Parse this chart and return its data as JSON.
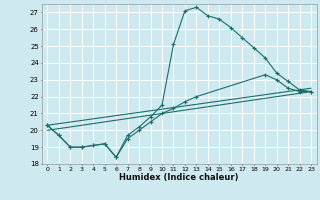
{
  "title": "",
  "xlabel": "Humidex (Indice chaleur)",
  "bg_color": "#ceeaf0",
  "grid_color": "#ffffff",
  "line_color": "#1a6e6a",
  "xlim": [
    -0.5,
    23.5
  ],
  "ylim": [
    18,
    27.5
  ],
  "yticks": [
    18,
    19,
    20,
    21,
    22,
    23,
    24,
    25,
    26,
    27
  ],
  "xticks": [
    0,
    1,
    2,
    3,
    4,
    5,
    6,
    7,
    8,
    9,
    10,
    11,
    12,
    13,
    14,
    15,
    16,
    17,
    18,
    19,
    20,
    21,
    22,
    23
  ],
  "series": [
    {
      "x": [
        0,
        1,
        2,
        3,
        4,
        5,
        6,
        7,
        8,
        9,
        10,
        11,
        12,
        13,
        14,
        15,
        16,
        17,
        18,
        19,
        20,
        21,
        22,
        23
      ],
      "y": [
        20.3,
        19.7,
        19.0,
        19.0,
        19.1,
        19.2,
        18.4,
        19.7,
        20.2,
        20.8,
        21.5,
        25.1,
        27.1,
        27.3,
        26.8,
        26.6,
        26.1,
        25.5,
        24.9,
        24.3,
        23.4,
        22.9,
        22.4,
        22.3
      ],
      "marker": true
    },
    {
      "x": [
        0,
        1,
        2,
        3,
        4,
        5,
        6,
        7,
        8,
        9,
        10,
        11,
        12,
        13,
        19,
        20,
        21,
        22,
        23
      ],
      "y": [
        20.3,
        19.7,
        19.0,
        19.0,
        19.1,
        19.2,
        18.4,
        19.5,
        20.0,
        20.5,
        21.0,
        21.3,
        21.7,
        22.0,
        23.3,
        23.0,
        22.5,
        22.3,
        22.3
      ],
      "marker": true
    },
    {
      "x": [
        0,
        23
      ],
      "y": [
        20.3,
        22.5
      ],
      "marker": false
    },
    {
      "x": [
        0,
        23
      ],
      "y": [
        20.0,
        22.3
      ],
      "marker": false
    }
  ]
}
